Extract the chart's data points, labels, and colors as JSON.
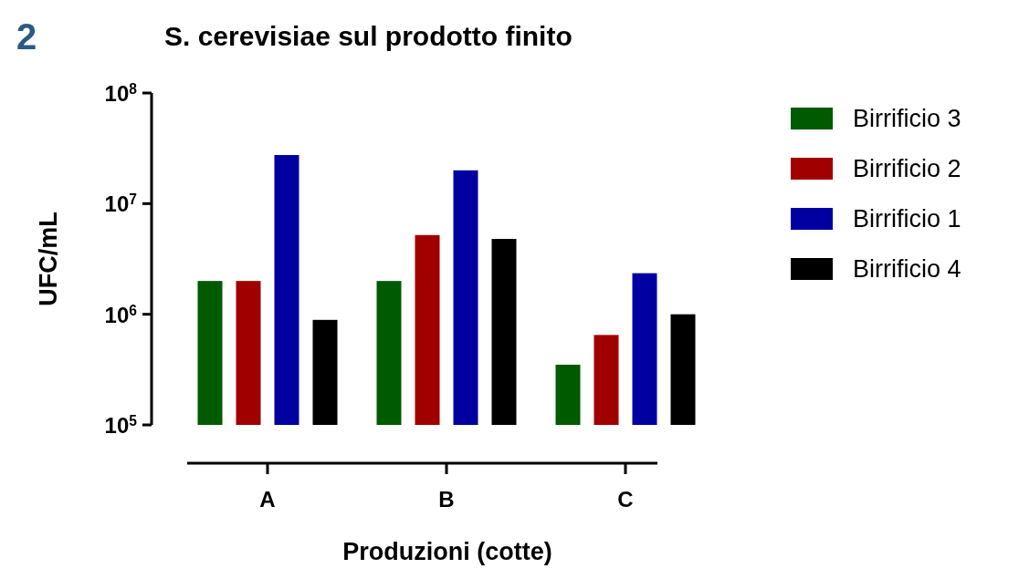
{
  "chart_data": {
    "type": "bar",
    "title": "S. cerevisiae sul prodotto finito",
    "xlabel": "Produzioni (cotte)",
    "ylabel": "UFC/mL",
    "annotations": [
      "2"
    ],
    "categories": [
      "A",
      "B",
      "C"
    ],
    "series": [
      {
        "name": "Birrificio 3",
        "color": "#005a00",
        "values": [
          2000000,
          2000000,
          350000
        ]
      },
      {
        "name": "Birrificio 2",
        "color": "#a00000",
        "values": [
          2000000,
          5200000,
          650000
        ]
      },
      {
        "name": "Birrificio 1",
        "color": "#0000a0",
        "values": [
          27500000,
          20000000,
          2350000
        ]
      },
      {
        "name": "Birrificio 4",
        "color": "#000000",
        "values": [
          890000,
          4800000,
          1000000
        ]
      }
    ],
    "log": true,
    "ylim": [
      100000,
      100000000
    ],
    "yticks": [
      {
        "value": 100000,
        "label": "10$^{5}$"
      },
      {
        "value": 1000000,
        "label": "10$^{6}$"
      },
      {
        "value": 10000000,
        "label": "10$^{7}$"
      },
      {
        "value": 100000000,
        "label": "10$^{8}$"
      }
    ],
    "grid": false,
    "legend": "right"
  }
}
